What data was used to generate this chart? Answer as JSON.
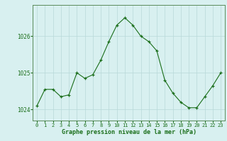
{
  "x": [
    0,
    1,
    2,
    3,
    4,
    5,
    6,
    7,
    8,
    9,
    10,
    11,
    12,
    13,
    14,
    15,
    16,
    17,
    18,
    19,
    20,
    21,
    22,
    23
  ],
  "y": [
    1024.1,
    1024.55,
    1024.55,
    1024.35,
    1024.4,
    1025.0,
    1024.85,
    1024.95,
    1025.35,
    1025.85,
    1026.3,
    1026.5,
    1026.3,
    1026.0,
    1025.85,
    1025.6,
    1024.8,
    1024.45,
    1024.2,
    1024.05,
    1024.05,
    1024.35,
    1024.65,
    1025.0
  ],
  "line_color": "#1a6e1a",
  "marker": "+",
  "marker_size": 3.5,
  "marker_linewidth": 0.9,
  "bg_color": "#d8f0f0",
  "grid_color": "#b8d8d8",
  "xlabel": "Graphe pression niveau de la mer (hPa)",
  "xlabel_color": "#1a6e1a",
  "tick_color": "#1a6e1a",
  "spine_color": "#5a8a5a",
  "ylim": [
    1023.7,
    1026.85
  ],
  "yticks": [
    1024,
    1025,
    1026
  ],
  "xlim": [
    -0.5,
    23.5
  ],
  "xticks": [
    0,
    1,
    2,
    3,
    4,
    5,
    6,
    7,
    8,
    9,
    10,
    11,
    12,
    13,
    14,
    15,
    16,
    17,
    18,
    19,
    20,
    21,
    22,
    23
  ],
  "tick_fontsize": 5.0,
  "ytick_fontsize": 5.5,
  "xlabel_fontsize": 6.0,
  "linewidth": 0.8
}
